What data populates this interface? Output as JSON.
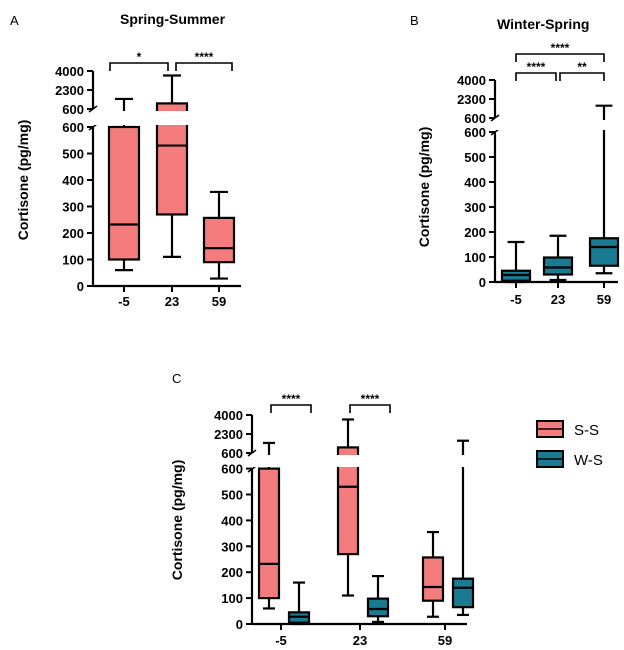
{
  "colors": {
    "ss": "#f47c7c",
    "ws": "#1a7a92",
    "ink": "#000000"
  },
  "chart_data": [
    {
      "panel_label": "A",
      "title": "Spring-Summer",
      "type": "boxplot",
      "ylabel": "Cortisone (pg/mg)",
      "y_ticks_lower": [
        "0",
        "100",
        "200",
        "300",
        "400",
        "500",
        "600"
      ],
      "y_ticks_upper": [
        "600",
        "2300",
        "4000"
      ],
      "categories": [
        "-5",
        "23",
        "59"
      ],
      "series": [
        {
          "color": "ss",
          "boxes": [
            {
              "category": "-5",
              "min": 60,
              "q1": 100,
              "median": 232,
              "q3": 600,
              "max": 1500
            },
            {
              "category": "23",
              "min": 110,
              "q1": 270,
              "median": 530,
              "q3": 1100,
              "max": 3600
            },
            {
              "category": "59",
              "min": 28,
              "q1": 90,
              "median": 143,
              "q3": 257,
              "max": 355
            }
          ]
        }
      ],
      "significance": [
        {
          "from": "-5",
          "to": "23",
          "label": "*"
        },
        {
          "from": "23",
          "to": "59",
          "label": "****"
        }
      ]
    },
    {
      "panel_label": "B",
      "title": "Winter-Spring",
      "type": "boxplot",
      "ylabel": "Cortisone (pg/mg)",
      "y_ticks_lower": [
        "0",
        "100",
        "200",
        "300",
        "400",
        "500",
        "600"
      ],
      "y_ticks_upper": [
        "600",
        "2300",
        "4000"
      ],
      "categories": [
        "-5",
        "23",
        "59"
      ],
      "series": [
        {
          "color": "ws",
          "boxes": [
            {
              "category": "-5",
              "min": 0,
              "q1": 5,
              "median": 28,
              "q3": 45,
              "max": 160
            },
            {
              "category": "23",
              "min": 8,
              "q1": 30,
              "median": 58,
              "q3": 98,
              "max": 185
            },
            {
              "category": "59",
              "min": 35,
              "q1": 65,
              "median": 140,
              "q3": 175,
              "max": 1700
            }
          ]
        }
      ],
      "significance": [
        {
          "from": "-5",
          "to": "59",
          "label": "****"
        },
        {
          "from": "-5",
          "to": "23",
          "label": "****"
        },
        {
          "from": "23",
          "to": "59",
          "label": "**"
        }
      ]
    },
    {
      "panel_label": "C",
      "title": "",
      "type": "boxplot",
      "ylabel": "Cortisone (pg/mg)",
      "y_ticks_lower": [
        "0",
        "100",
        "200",
        "300",
        "400",
        "500",
        "600"
      ],
      "y_ticks_upper": [
        "600",
        "2300",
        "4000"
      ],
      "categories": [
        "-5",
        "23",
        "59"
      ],
      "series": [
        {
          "name": "S-S",
          "color": "ss",
          "boxes": [
            {
              "category": "-5",
              "min": 60,
              "q1": 100,
              "median": 232,
              "q3": 600,
              "max": 1500
            },
            {
              "category": "23",
              "min": 110,
              "q1": 270,
              "median": 530,
              "q3": 1100,
              "max": 3600
            },
            {
              "category": "59",
              "min": 28,
              "q1": 90,
              "median": 143,
              "q3": 257,
              "max": 355
            }
          ]
        },
        {
          "name": "W-S",
          "color": "ws",
          "boxes": [
            {
              "category": "-5",
              "min": 0,
              "q1": 5,
              "median": 28,
              "q3": 45,
              "max": 160
            },
            {
              "category": "23",
              "min": 8,
              "q1": 30,
              "median": 58,
              "q3": 98,
              "max": 185
            },
            {
              "category": "59",
              "min": 35,
              "q1": 65,
              "median": 140,
              "q3": 175,
              "max": 1700
            }
          ]
        }
      ],
      "significance": [
        {
          "category": "-5",
          "label": "****"
        },
        {
          "category": "23",
          "label": "****"
        }
      ],
      "legend": {
        "position": "right",
        "entries": [
          "S-S",
          "W-S"
        ]
      }
    }
  ]
}
